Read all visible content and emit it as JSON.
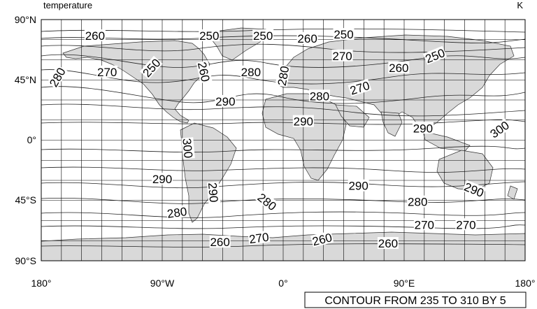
{
  "header": {
    "left": "temperature",
    "right": "K"
  },
  "lat_labels": [
    "90°N",
    "45°N",
    "0°",
    "45°S",
    "90°S"
  ],
  "lon_labels": [
    "180°",
    "90°W",
    "0°",
    "90°E",
    "180°"
  ],
  "info_box": "CONTOUR FROM 235 TO 310 BY 5",
  "contour_labels": [
    {
      "text": "260",
      "lon": -140,
      "lat": 78,
      "rot": 0
    },
    {
      "text": "250",
      "lon": -55,
      "lat": 78,
      "rot": 0
    },
    {
      "text": "250",
      "lon": -15,
      "lat": 78,
      "rot": 0
    },
    {
      "text": "260",
      "lon": 18,
      "lat": 76,
      "rot": 0
    },
    {
      "text": "250",
      "lon": 45,
      "lat": 79,
      "rot": 0
    },
    {
      "text": "280",
      "lon": -168,
      "lat": 47,
      "rot": -60
    },
    {
      "text": "270",
      "lon": -131,
      "lat": 51,
      "rot": 0
    },
    {
      "text": "250",
      "lon": -98,
      "lat": 54,
      "rot": -48
    },
    {
      "text": "260",
      "lon": -59,
      "lat": 51,
      "rot": 78
    },
    {
      "text": "280",
      "lon": -24,
      "lat": 51,
      "rot": 0
    },
    {
      "text": "280",
      "lon": 0,
      "lat": 48,
      "rot": -80
    },
    {
      "text": "270",
      "lon": 44,
      "lat": 63,
      "rot": 0
    },
    {
      "text": "260",
      "lon": 86,
      "lat": 54,
      "rot": 0
    },
    {
      "text": "250",
      "lon": 113,
      "lat": 63,
      "rot": -22
    },
    {
      "text": "280",
      "lon": 27,
      "lat": 33,
      "rot": 0
    },
    {
      "text": "270",
      "lon": 57,
      "lat": 39,
      "rot": -18
    },
    {
      "text": "290",
      "lon": -43,
      "lat": 29,
      "rot": 0
    },
    {
      "text": "290",
      "lon": 15,
      "lat": 14,
      "rot": 0
    },
    {
      "text": "290",
      "lon": 104,
      "lat": 9,
      "rot": 0
    },
    {
      "text": "300",
      "lon": 161,
      "lat": 8,
      "rot": -35
    },
    {
      "text": "300",
      "lon": -71,
      "lat": -6,
      "rot": 85
    },
    {
      "text": "290",
      "lon": -90,
      "lat": -29,
      "rot": 0
    },
    {
      "text": "290",
      "lon": -52,
      "lat": -39,
      "rot": 85
    },
    {
      "text": "280",
      "lon": -12,
      "lat": -46,
      "rot": 38
    },
    {
      "text": "290",
      "lon": 56,
      "lat": -34,
      "rot": 0
    },
    {
      "text": "290",
      "lon": 142,
      "lat": -37,
      "rot": 22
    },
    {
      "text": "280",
      "lon": 100,
      "lat": -46,
      "rot": 0
    },
    {
      "text": "280",
      "lon": -79,
      "lat": -54,
      "rot": -8
    },
    {
      "text": "270",
      "lon": 105,
      "lat": -63,
      "rot": 0
    },
    {
      "text": "270",
      "lon": 136,
      "lat": -63,
      "rot": 0
    },
    {
      "text": "260",
      "lon": -47,
      "lat": -76,
      "rot": 0
    },
    {
      "text": "270",
      "lon": -18,
      "lat": -73,
      "rot": -8
    },
    {
      "text": "260",
      "lon": 29,
      "lat": -74,
      "rot": -14
    },
    {
      "text": "260",
      "lon": 78,
      "lat": -77,
      "rot": 0
    }
  ]
}
